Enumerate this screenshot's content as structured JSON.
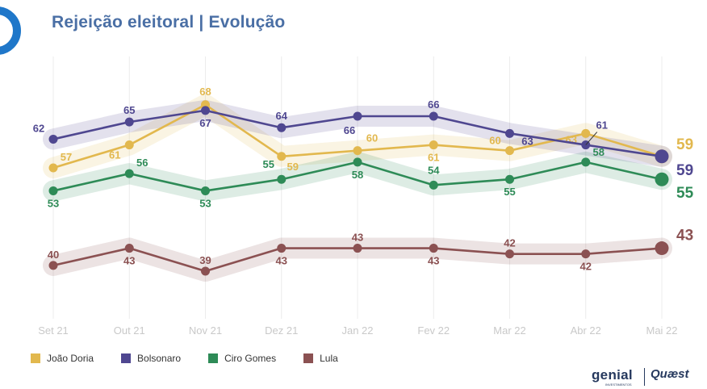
{
  "title": "Rejeição eleitoral | Evolução",
  "brands": {
    "left": "genial",
    "left_sub": "INVESTIMENTOS",
    "right": "Quæst"
  },
  "chart_data": {
    "type": "line",
    "title": "Rejeição eleitoral | Evolução",
    "categories": [
      "Set 21",
      "Out 21",
      "Nov 21",
      "Dez 21",
      "Jan 22",
      "Fev 22",
      "Mar 22",
      "Abr 22",
      "Mai 22"
    ],
    "ylim": [
      30,
      75
    ],
    "grid": "vertical",
    "legend": "bottom-left",
    "series": [
      {
        "name": "João Doria",
        "color": "#e2b84e",
        "values": [
          57,
          61,
          68,
          59,
          60,
          61,
          60,
          63,
          59
        ]
      },
      {
        "name": "Bolsonaro",
        "color": "#4f4790",
        "values": [
          62,
          65,
          67,
          64,
          66,
          66,
          63,
          61,
          59
        ]
      },
      {
        "name": "Ciro Gomes",
        "color": "#2e8b57",
        "values": [
          53,
          56,
          53,
          55,
          58,
          54,
          55,
          58,
          55
        ]
      },
      {
        "name": "Lula",
        "color": "#8b5152",
        "values": [
          40,
          43,
          39,
          43,
          43,
          43,
          42,
          42,
          43
        ]
      }
    ]
  }
}
